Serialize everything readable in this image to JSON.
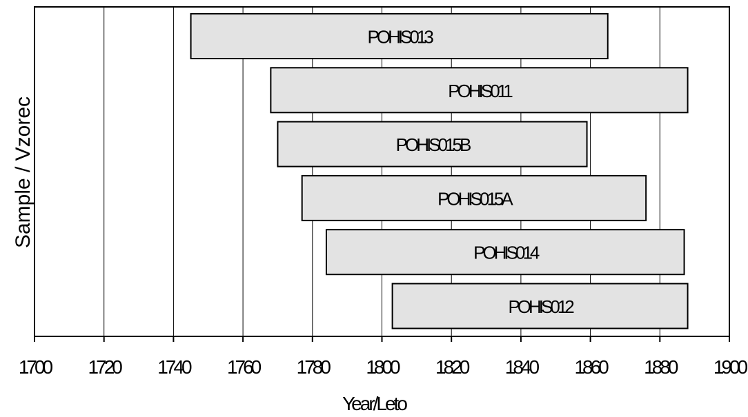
{
  "chart_data": {
    "type": "bar",
    "orientation": "horizontal-range",
    "title": "",
    "xlabel": "Year/Leto",
    "ylabel": "Sample / Vzorec",
    "xlim": [
      1700,
      1900
    ],
    "x_ticks": [
      "1700",
      "1720",
      "1740",
      "1760",
      "1780",
      "1800",
      "1820",
      "1840",
      "1860",
      "1880",
      "1900"
    ],
    "grid": "vertical",
    "bar_color": "#e3e3e3",
    "bars": [
      {
        "label": "POHIS013",
        "start": 1745,
        "end": 1865
      },
      {
        "label": "POHIS011",
        "start": 1768,
        "end": 1888
      },
      {
        "label": "POHIS015B",
        "start": 1770,
        "end": 1859
      },
      {
        "label": "POHIS015A",
        "start": 1777,
        "end": 1876
      },
      {
        "label": "POHIS014",
        "start": 1784,
        "end": 1887
      },
      {
        "label": "POHIS012",
        "start": 1803,
        "end": 1888
      }
    ]
  }
}
